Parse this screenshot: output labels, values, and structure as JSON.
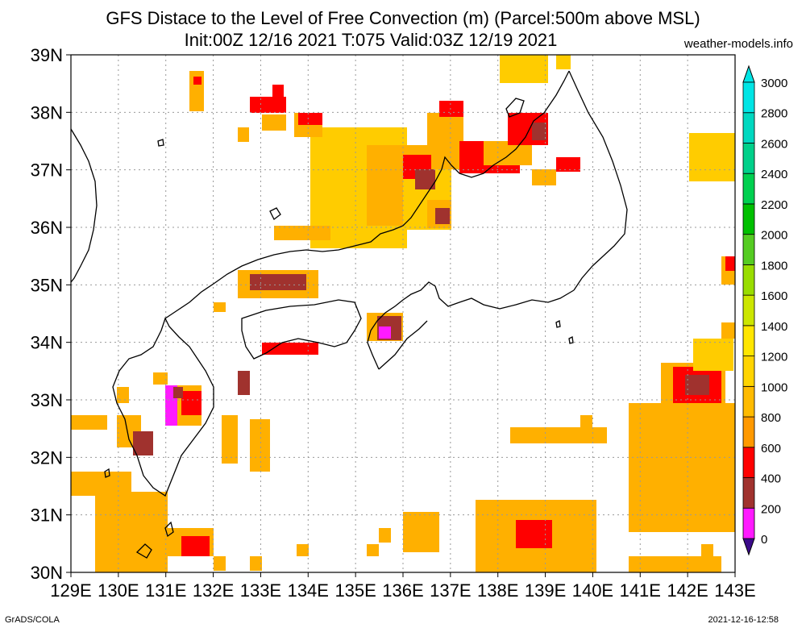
{
  "title_line1": "GFS Distace to the Level of Free Convection (m) (Parcel:500m above MSL)",
  "title_line2": "Init:00Z 12/16 2021 T:075 Valid:03Z 12/19 2021",
  "website": "weather-models.info",
  "footer_left": "GrADS/COLA",
  "footer_right": "2021-12-16-12:58",
  "lat_labels": [
    "39N",
    "38N",
    "37N",
    "36N",
    "35N",
    "34N",
    "33N",
    "32N",
    "31N",
    "30N"
  ],
  "lon_labels": [
    "129E",
    "130E",
    "131E",
    "132E",
    "133E",
    "134E",
    "135E",
    "136E",
    "137E",
    "138E",
    "139E",
    "140E",
    "141E",
    "142E",
    "143E"
  ],
  "colorbar": {
    "levels": [
      "0",
      "200",
      "400",
      "600",
      "800",
      "1000",
      "1200",
      "1400",
      "1600",
      "1800",
      "2000",
      "2200",
      "2400",
      "2600",
      "2800",
      "3000"
    ],
    "colors": [
      "#3b0a8a",
      "#ff1aff",
      "#a0322e",
      "#ff0000",
      "#ff9900",
      "#ffbb00",
      "#ffd400",
      "#ffe600",
      "#cce600",
      "#99dd00",
      "#55cc22",
      "#00c000",
      "#00d050",
      "#00d08a",
      "#00d8c0",
      "#00e5e5"
    ]
  },
  "palette": {
    "yellow": "#ffcc00",
    "orange": "#ffb000",
    "deep_orange": "#ff9900",
    "red": "#ff0000",
    "brown": "#a0322e",
    "magenta": "#ff1aff",
    "purple": "#3b0a8a"
  }
}
